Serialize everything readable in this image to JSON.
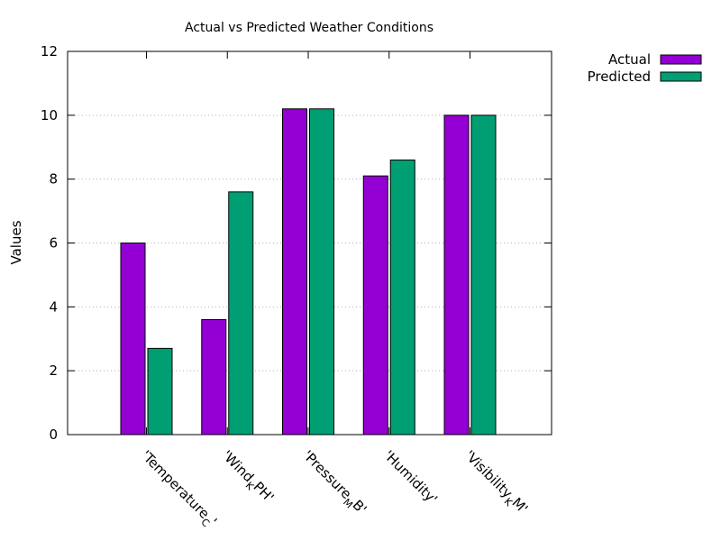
{
  "chart_data": {
    "type": "bar",
    "title": "Actual vs Predicted Weather Conditions",
    "xlabel": "",
    "ylabel": "Values",
    "ylim": [
      0,
      12
    ],
    "yticks": [
      0,
      2,
      4,
      6,
      8,
      10,
      12
    ],
    "grid": "horizontal dotted",
    "legend_position": "top-right outside",
    "categories": [
      {
        "main": "'Temperature",
        "sub": "C",
        "tail": "'"
      },
      {
        "main": "'Wind",
        "sub": "K",
        "tail": "PH'"
      },
      {
        "main": "'Pressure",
        "sub": "M",
        "tail": "B'"
      },
      {
        "main": "'Humidity'",
        "sub": "",
        "tail": ""
      },
      {
        "main": "'Visibility",
        "sub": "K",
        "tail": "M'"
      }
    ],
    "series": [
      {
        "name": "Actual",
        "color": "#9400d3",
        "values": [
          6.0,
          3.6,
          10.2,
          8.1,
          10.0
        ]
      },
      {
        "name": "Predicted",
        "color": "#009e73",
        "values": [
          2.7,
          7.6,
          10.2,
          8.6,
          10.0
        ]
      }
    ]
  }
}
